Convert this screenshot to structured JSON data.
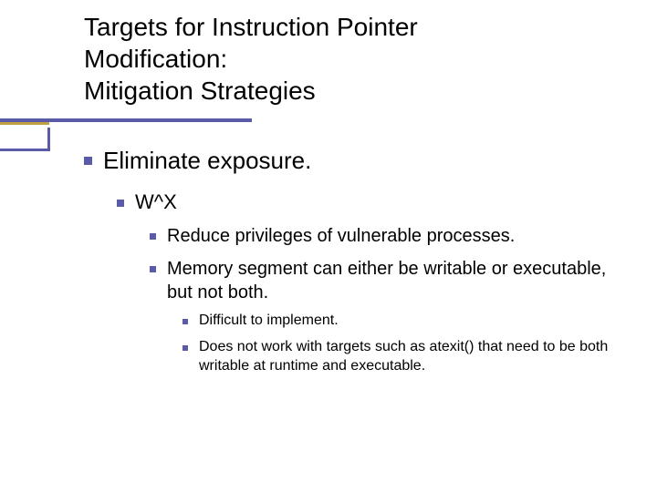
{
  "colors": {
    "bullet": "#5a5aa8",
    "underline_primary": "#5a5aa8",
    "underline_accent": "#c0a040",
    "background": "#ffffff",
    "text": "#000000"
  },
  "title": {
    "line1": "Targets for Instruction Pointer",
    "line2": "Modification:",
    "line3": "Mitigation Strategies",
    "fontsize": 28
  },
  "content": {
    "lvl1": {
      "text": "Eliminate exposure.",
      "fontsize": 26
    },
    "lvl2": {
      "text": "W^X",
      "fontsize": 22
    },
    "lvl3": [
      {
        "text": "Reduce privileges of vulnerable processes.",
        "fontsize": 20
      },
      {
        "text": "Memory segment can either be writable or executable, but not both.",
        "fontsize": 20
      }
    ],
    "lvl4": [
      {
        "text": "Difficult to implement.",
        "fontsize": 16
      },
      {
        "text": "Does not work with targets such as atexit() that need to be both writable at runtime and executable.",
        "fontsize": 16
      }
    ]
  }
}
